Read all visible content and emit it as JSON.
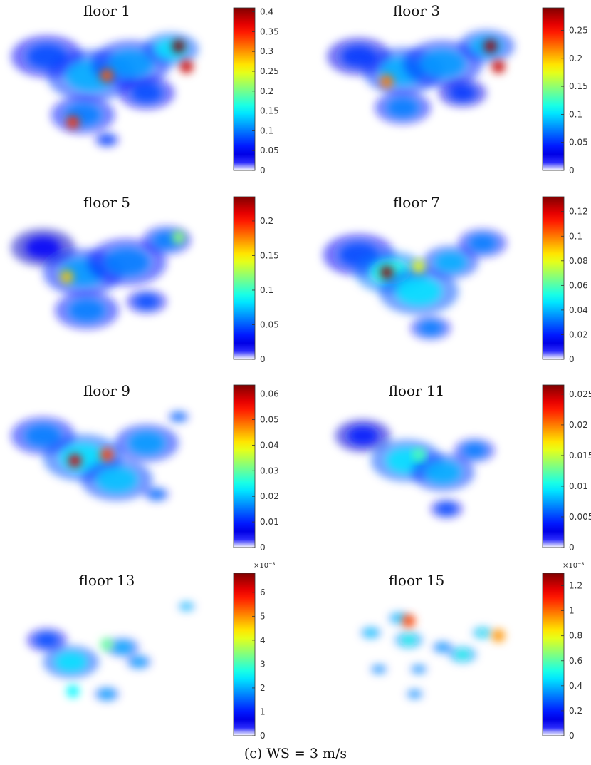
{
  "caption": "(c) WS = 3 m/s",
  "chart_data": [
    {
      "type": "heatmap",
      "title": "floor 1",
      "colormap": "jet",
      "colorbar": {
        "min": 0,
        "max": 0.41,
        "ticks": [
          0,
          0.05,
          0.1,
          0.15,
          0.2,
          0.25,
          0.3,
          0.35,
          0.4
        ],
        "tick_labels": [
          "0",
          "0.05",
          "0.1",
          "0.15",
          "0.2",
          "0.25",
          "0.3",
          "0.35",
          "0.4"
        ],
        "exponent_label": ""
      },
      "hotspots": [
        {
          "value": 0.41,
          "location": "upper-right"
        },
        {
          "value": 0.38,
          "location": "right"
        },
        {
          "value": 0.32,
          "location": "center"
        },
        {
          "value": 0.34,
          "location": "lower-left"
        }
      ]
    },
    {
      "type": "heatmap",
      "title": "floor 3",
      "colormap": "jet",
      "colorbar": {
        "min": 0,
        "max": 0.29,
        "ticks": [
          0,
          0.05,
          0.1,
          0.15,
          0.2,
          0.25
        ],
        "tick_labels": [
          "0",
          "0.05",
          "0.1",
          "0.15",
          "0.2",
          "0.25"
        ],
        "exponent_label": ""
      },
      "hotspots": [
        {
          "value": 0.28,
          "location": "upper-right"
        },
        {
          "value": 0.27,
          "location": "right"
        },
        {
          "value": 0.22,
          "location": "center-left"
        }
      ]
    },
    {
      "type": "heatmap",
      "title": "floor 5",
      "colormap": "jet",
      "colorbar": {
        "min": 0,
        "max": 0.235,
        "ticks": [
          0,
          0.05,
          0.1,
          0.15,
          0.2
        ],
        "tick_labels": [
          "0",
          "0.05",
          "0.1",
          "0.15",
          "0.2"
        ],
        "exponent_label": ""
      },
      "hotspots": [
        {
          "value": 0.16,
          "location": "left"
        },
        {
          "value": 0.12,
          "location": "upper-right"
        }
      ]
    },
    {
      "type": "heatmap",
      "title": "floor 7",
      "colormap": "jet",
      "colorbar": {
        "min": 0,
        "max": 0.132,
        "ticks": [
          0,
          0.02,
          0.04,
          0.06,
          0.08,
          0.1,
          0.12
        ],
        "tick_labels": [
          "0",
          "0.02",
          "0.04",
          "0.06",
          "0.08",
          "0.1",
          "0.12"
        ],
        "exponent_label": ""
      },
      "hotspots": [
        {
          "value": 0.13,
          "location": "center-left"
        },
        {
          "value": 0.08,
          "location": "center"
        }
      ]
    },
    {
      "type": "heatmap",
      "title": "floor 9",
      "colormap": "jet",
      "colorbar": {
        "min": 0,
        "max": 0.0635,
        "ticks": [
          0,
          0.01,
          0.02,
          0.03,
          0.04,
          0.05,
          0.06
        ],
        "tick_labels": [
          "0",
          "0.01",
          "0.02",
          "0.03",
          "0.04",
          "0.05",
          "0.06"
        ],
        "exponent_label": ""
      },
      "hotspots": [
        {
          "value": 0.058,
          "location": "center-left"
        },
        {
          "value": 0.052,
          "location": "center"
        }
      ]
    },
    {
      "type": "heatmap",
      "title": "floor 11",
      "colormap": "jet",
      "colorbar": {
        "min": 0,
        "max": 0.0265,
        "ticks": [
          0,
          0.005,
          0.01,
          0.015,
          0.02,
          0.025
        ],
        "tick_labels": [
          "0",
          "0.005",
          "0.01",
          "0.015",
          "0.02",
          "0.025"
        ],
        "exponent_label": ""
      },
      "hotspots": [
        {
          "value": 0.012,
          "location": "center"
        }
      ]
    },
    {
      "type": "heatmap",
      "title": "floor 13",
      "colormap": "jet",
      "colorbar": {
        "min": 0,
        "max": 6.8,
        "ticks": [
          0,
          1,
          2,
          3,
          4,
          5,
          6
        ],
        "tick_labels": [
          "0",
          "1",
          "2",
          "3",
          "4",
          "5",
          "6"
        ],
        "exponent_label": "×10⁻³"
      },
      "hotspots": [
        {
          "value": 3.2,
          "location": "center"
        },
        {
          "value": 2.5,
          "location": "lower-left"
        }
      ]
    },
    {
      "type": "heatmap",
      "title": "floor 15",
      "colormap": "jet",
      "colorbar": {
        "min": 0,
        "max": 1.3,
        "ticks": [
          0,
          0.2,
          0.4,
          0.6,
          0.8,
          1,
          1.2
        ],
        "tick_labels": [
          "0",
          "0.2",
          "0.4",
          "0.6",
          "0.8",
          "1",
          "1.2"
        ],
        "exponent_label": "×10⁻³"
      },
      "hotspots": [
        {
          "value": 1.05,
          "location": "upper-center"
        },
        {
          "value": 0.95,
          "location": "right"
        }
      ]
    }
  ]
}
